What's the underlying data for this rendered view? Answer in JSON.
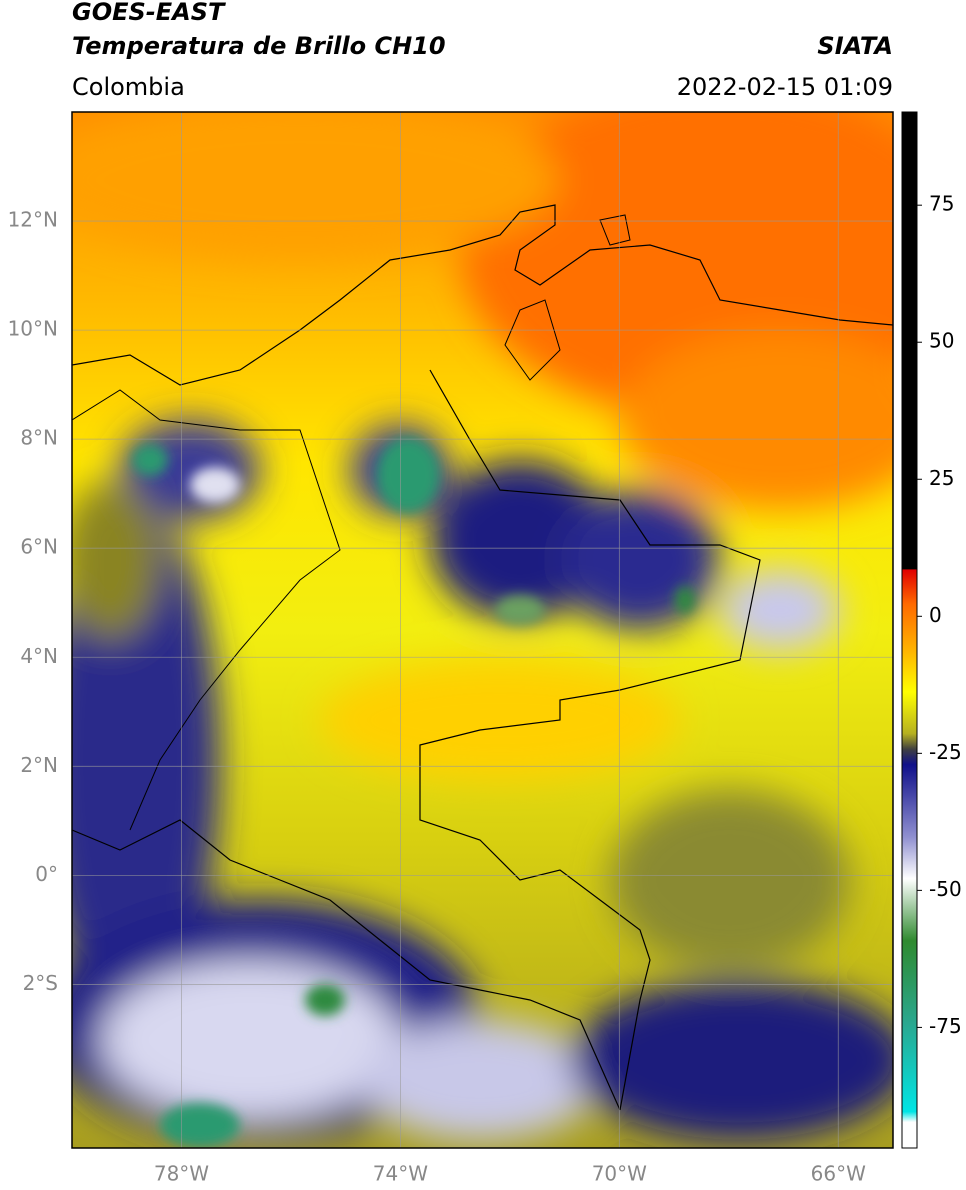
{
  "header": {
    "title": "GOES-EAST",
    "subtitle": "Temperatura de Brillo CH10",
    "source": "SIATA",
    "region": "Colombia",
    "datetime": "2022-02-15 01:09"
  },
  "map": {
    "lon_range": [
      -80,
      -65
    ],
    "lat_range": [
      -5,
      14
    ],
    "lat_ticks": [
      {
        "value": 12,
        "label": "12°N"
      },
      {
        "value": 10,
        "label": "10°N"
      },
      {
        "value": 8,
        "label": "8°N"
      },
      {
        "value": 6,
        "label": "6°N"
      },
      {
        "value": 4,
        "label": "4°N"
      },
      {
        "value": 2,
        "label": "2°N"
      },
      {
        "value": 0,
        "label": "0°"
      },
      {
        "value": -2,
        "label": "2°S"
      }
    ],
    "lon_ticks": [
      {
        "value": -78,
        "label": "78°W"
      },
      {
        "value": -74,
        "label": "74°W"
      },
      {
        "value": -70,
        "label": "70°W"
      },
      {
        "value": -66,
        "label": "66°W"
      }
    ],
    "grid": true
  },
  "colorbar": {
    "lim": [
      -97,
      92
    ],
    "ticks": [
      75,
      50,
      25,
      0,
      -25,
      -50,
      -75
    ]
  }
}
